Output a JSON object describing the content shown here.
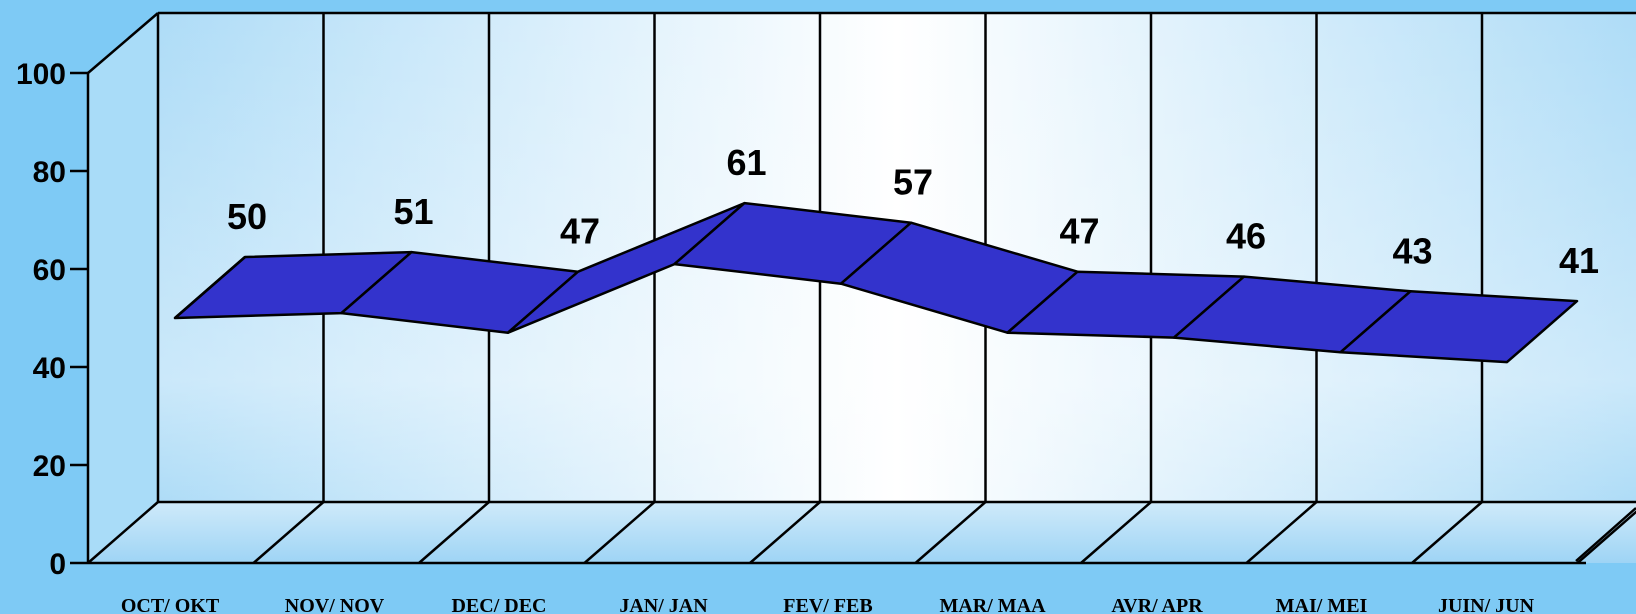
{
  "chart_data": {
    "type": "line",
    "style": "3d-ribbon",
    "categories": [
      "OCT/ OKT",
      "NOV/ NOV",
      "DEC/ DEC",
      "JAN/ JAN",
      "FEV/ FEB",
      "MAR/ MAA",
      "AVR/ APR",
      "MAI/ MEI",
      "JUIN/ JUN"
    ],
    "values": [
      50,
      51,
      47,
      61,
      57,
      47,
      46,
      43,
      41
    ],
    "ylim": [
      0,
      100
    ],
    "yticks": [
      0,
      20,
      40,
      60,
      80,
      100
    ],
    "data_labels": [
      "50",
      "51",
      "47",
      "61",
      "57",
      "47",
      "46",
      "43",
      "41"
    ],
    "grid": true,
    "legend": "none",
    "colors": {
      "ribbon": "#3333cc",
      "background": "#7ecaf5",
      "wall_center": "#ffffff",
      "axis": "#000000"
    }
  }
}
